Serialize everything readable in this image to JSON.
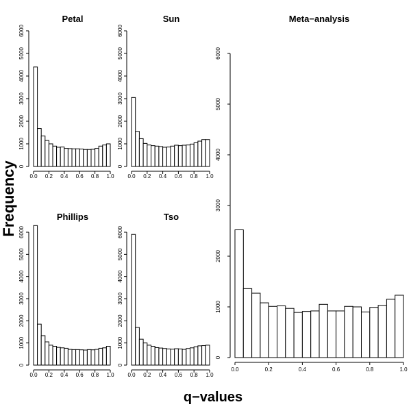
{
  "figure": {
    "ylabel": "Frequency",
    "xlabel": "q−values"
  },
  "chart_data": [
    {
      "type": "bar",
      "title": "Petal",
      "xlabel": "",
      "ylabel": "",
      "bin_edges": [
        0.0,
        0.05,
        0.1,
        0.15,
        0.2,
        0.25,
        0.3,
        0.35,
        0.4,
        0.45,
        0.5,
        0.55,
        0.6,
        0.65,
        0.7,
        0.75,
        0.8,
        0.85,
        0.9,
        0.95,
        1.0
      ],
      "values": [
        4400,
        1680,
        1350,
        1150,
        1000,
        900,
        850,
        860,
        800,
        790,
        780,
        780,
        770,
        750,
        750,
        760,
        800,
        900,
        950,
        1000
      ],
      "xlim": [
        0,
        1
      ],
      "ylim": [
        0,
        6000
      ],
      "xticks": [
        "0.0",
        "0.2",
        "0.4",
        "0.6",
        "0.8",
        "1.0"
      ],
      "xtick_values": [
        0,
        0.2,
        0.4,
        0.6,
        0.8,
        1.0
      ],
      "yticks": [
        "0",
        "1000",
        "2000",
        "3000",
        "4000",
        "5000",
        "6000"
      ],
      "ytick_values": [
        0,
        1000,
        2000,
        3000,
        4000,
        5000,
        6000
      ]
    },
    {
      "type": "bar",
      "title": "Sun",
      "xlabel": "",
      "ylabel": "",
      "bin_edges": [
        0.0,
        0.05,
        0.1,
        0.15,
        0.2,
        0.25,
        0.3,
        0.35,
        0.4,
        0.45,
        0.5,
        0.55,
        0.6,
        0.65,
        0.7,
        0.75,
        0.8,
        0.85,
        0.9,
        0.95,
        1.0
      ],
      "values": [
        3050,
        1550,
        1230,
        1020,
        950,
        920,
        900,
        880,
        850,
        860,
        900,
        940,
        920,
        940,
        950,
        990,
        1050,
        1120,
        1190,
        1190
      ],
      "xlim": [
        0,
        1
      ],
      "ylim": [
        0,
        6000
      ],
      "xticks": [
        "0.0",
        "0.2",
        "0.4",
        "0.6",
        "0.8",
        "1.0"
      ],
      "xtick_values": [
        0,
        0.2,
        0.4,
        0.6,
        0.8,
        1.0
      ],
      "yticks": [
        "0",
        "1000",
        "2000",
        "3000",
        "4000",
        "5000",
        "6000"
      ],
      "ytick_values": [
        0,
        1000,
        2000,
        3000,
        4000,
        5000,
        6000
      ]
    },
    {
      "type": "bar",
      "title": "Phillips",
      "xlabel": "",
      "ylabel": "",
      "bin_edges": [
        0.0,
        0.05,
        0.1,
        0.15,
        0.2,
        0.25,
        0.3,
        0.35,
        0.4,
        0.45,
        0.5,
        0.55,
        0.6,
        0.65,
        0.7,
        0.75,
        0.8,
        0.85,
        0.9,
        0.95,
        1.0
      ],
      "values": [
        6300,
        1850,
        1330,
        1050,
        900,
        850,
        800,
        780,
        760,
        710,
        700,
        700,
        690,
        680,
        700,
        690,
        710,
        760,
        780,
        850
      ],
      "xlim": [
        0,
        1
      ],
      "ylim": [
        0,
        6000
      ],
      "xticks": [
        "0.0",
        "0.2",
        "0.4",
        "0.6",
        "0.8",
        "1.0"
      ],
      "xtick_values": [
        0,
        0.2,
        0.4,
        0.6,
        0.8,
        1.0
      ],
      "yticks": [
        "0",
        "1000",
        "2000",
        "3000",
        "4000",
        "5000",
        "6000"
      ],
      "ytick_values": [
        0,
        1000,
        2000,
        3000,
        4000,
        5000,
        6000
      ]
    },
    {
      "type": "bar",
      "title": "Tso",
      "xlabel": "",
      "ylabel": "",
      "bin_edges": [
        0.0,
        0.05,
        0.1,
        0.15,
        0.2,
        0.25,
        0.3,
        0.35,
        0.4,
        0.45,
        0.5,
        0.55,
        0.6,
        0.65,
        0.7,
        0.75,
        0.8,
        0.85,
        0.9,
        0.95,
        1.0
      ],
      "values": [
        5900,
        1700,
        1170,
        1000,
        900,
        850,
        790,
        770,
        750,
        730,
        720,
        740,
        730,
        710,
        750,
        780,
        830,
        870,
        880,
        900
      ],
      "xlim": [
        0,
        1
      ],
      "ylim": [
        0,
        6000
      ],
      "xticks": [
        "0.0",
        "0.2",
        "0.4",
        "0.6",
        "0.8",
        "1.0"
      ],
      "xtick_values": [
        0,
        0.2,
        0.4,
        0.6,
        0.8,
        1.0
      ],
      "yticks": [
        "0",
        "1000",
        "2000",
        "3000",
        "4000",
        "5000",
        "6000"
      ],
      "ytick_values": [
        0,
        1000,
        2000,
        3000,
        4000,
        5000,
        6000
      ]
    },
    {
      "type": "bar",
      "title": "Meta−analysis",
      "xlabel": "",
      "ylabel": "",
      "bin_edges": [
        0.0,
        0.05,
        0.1,
        0.15,
        0.2,
        0.25,
        0.3,
        0.35,
        0.4,
        0.45,
        0.5,
        0.55,
        0.6,
        0.65,
        0.7,
        0.75,
        0.8,
        0.85,
        0.9,
        0.95,
        1.0
      ],
      "values": [
        2520,
        1360,
        1270,
        1080,
        1010,
        1020,
        970,
        890,
        910,
        920,
        1050,
        920,
        920,
        1010,
        1000,
        900,
        990,
        1030,
        1150,
        1230
      ],
      "xlim": [
        0,
        1
      ],
      "ylim": [
        0,
        6000
      ],
      "xticks": [
        "0.0",
        "0.2",
        "0.4",
        "0.6",
        "0.8",
        "1.0"
      ],
      "xtick_values": [
        0,
        0.2,
        0.4,
        0.6,
        0.8,
        1.0
      ],
      "yticks": [
        "0",
        "1000",
        "2000",
        "3000",
        "4000",
        "5000",
        "6000"
      ],
      "ytick_values": [
        0,
        1000,
        2000,
        3000,
        4000,
        5000,
        6000
      ]
    }
  ]
}
